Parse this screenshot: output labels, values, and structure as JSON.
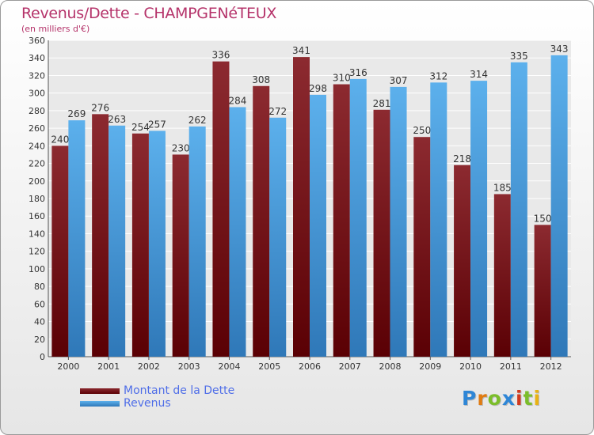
{
  "chart_data": {
    "type": "bar",
    "title": "Revenus/Dette - CHAMPGENéTEUX",
    "subtitle": "(en milliers d'€)",
    "xlabel": "",
    "ylabel": "",
    "ylim": [
      0,
      360
    ],
    "ytick_step": 20,
    "grid": true,
    "legend_position": "bottom-left",
    "categories": [
      "2000",
      "2001",
      "2002",
      "2003",
      "2004",
      "2005",
      "2006",
      "2007",
      "2008",
      "2009",
      "2010",
      "2011",
      "2012"
    ],
    "series": [
      {
        "name": "Montant de la Dette",
        "color": "#7a0e12",
        "values": [
          240,
          276,
          254,
          230,
          336,
          308,
          341,
          310,
          281,
          250,
          218,
          185,
          150
        ]
      },
      {
        "name": "Revenus",
        "color": "#4d9fe0",
        "values": [
          269,
          263,
          257,
          262,
          284,
          272,
          298,
          316,
          307,
          312,
          314,
          335,
          343
        ]
      }
    ]
  },
  "logo": {
    "letters": [
      "P",
      "r",
      "o",
      "x",
      "i",
      "t",
      "i"
    ],
    "colors": [
      "#2e86d6",
      "#e07b12",
      "#7bbd2a",
      "#2e86d6",
      "#d23a1e",
      "#7bbd2a",
      "#e8b214"
    ]
  }
}
